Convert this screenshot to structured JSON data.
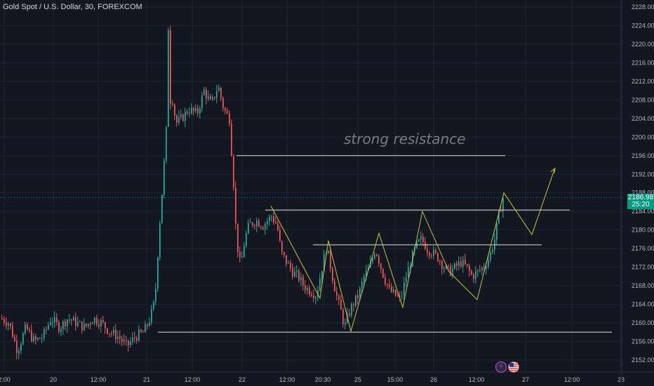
{
  "header": {
    "symbol_title": "Gold Spot / U.S. Dollar, 30, FOREXCOM"
  },
  "last_price": {
    "value": "2186.98",
    "countdown": "25:20"
  },
  "annotation": {
    "text": "strong resistance"
  },
  "events": {
    "flash_icon": "lightning-icon",
    "flag_icon": "us-flag-icon"
  },
  "colors": {
    "background": "#131722",
    "up": "#26a69a",
    "down": "#ef5350",
    "price_tag": "#089981",
    "zigzag": "#c9c43a",
    "level_lines": "#e0e0e0"
  },
  "chart_data": {
    "type": "candlestick",
    "symbol": "Gold Spot / U.S. Dollar",
    "interval": "30",
    "exchange": "FOREXCOM",
    "ylim": [
      2150,
      2229
    ],
    "y_ticks": [
      "2228.00",
      "2224.00",
      "2220.00",
      "2216.00",
      "2212.00",
      "2208.00",
      "2204.00",
      "2200.00",
      "2196.00",
      "2192.00",
      "2188.00",
      "2184.00",
      "2180.00",
      "2176.00",
      "2172.00",
      "2168.00",
      "2164.00",
      "2160.00",
      "2156.00",
      "2152.00"
    ],
    "x_ticks": [
      "2:00",
      "20",
      "12:00",
      "21",
      "12:00",
      "22",
      "12:00",
      "20:30",
      "25",
      "15:00",
      "26",
      "12:00",
      "27",
      "12:00",
      "28"
    ],
    "close_path": [
      [
        0,
        2161
      ],
      [
        12,
        2160
      ],
      [
        24,
        2154
      ],
      [
        36,
        2159
      ],
      [
        48,
        2156
      ],
      [
        60,
        2157
      ],
      [
        72,
        2161
      ],
      [
        84,
        2159
      ],
      [
        96,
        2161
      ],
      [
        108,
        2160
      ],
      [
        120,
        2159
      ],
      [
        132,
        2161
      ],
      [
        144,
        2160
      ],
      [
        156,
        2158
      ],
      [
        168,
        2157
      ],
      [
        180,
        2155
      ],
      [
        192,
        2157
      ],
      [
        204,
        2158
      ],
      [
        213,
        2161
      ],
      [
        220,
        2165
      ],
      [
        226,
        2180
      ],
      [
        232,
        2192
      ],
      [
        238,
        2206
      ],
      [
        244,
        2209
      ],
      [
        250,
        2203
      ],
      [
        258,
        2204
      ],
      [
        268,
        2206
      ],
      [
        280,
        2205
      ],
      [
        290,
        2210
      ],
      [
        300,
        2207
      ],
      [
        310,
        2211
      ],
      [
        318,
        2206
      ],
      [
        326,
        2204
      ],
      [
        332,
        2190
      ],
      [
        336,
        2178
      ],
      [
        342,
        2172
      ],
      [
        348,
        2178
      ],
      [
        354,
        2181
      ],
      [
        364,
        2182
      ],
      [
        374,
        2181
      ],
      [
        386,
        2183
      ],
      [
        394,
        2181
      ],
      [
        400,
        2175
      ],
      [
        408,
        2173
      ],
      [
        416,
        2171
      ],
      [
        424,
        2170
      ],
      [
        432,
        2168
      ],
      [
        440,
        2167
      ],
      [
        450,
        2166
      ],
      [
        458,
        2172
      ],
      [
        464,
        2176
      ],
      [
        468,
        2174
      ],
      [
        474,
        2169
      ],
      [
        480,
        2165
      ],
      [
        486,
        2162
      ],
      [
        490,
        2159
      ],
      [
        496,
        2162
      ],
      [
        502,
        2164
      ],
      [
        510,
        2166
      ],
      [
        518,
        2170
      ],
      [
        526,
        2172
      ],
      [
        534,
        2176
      ],
      [
        540,
        2173
      ],
      [
        546,
        2170
      ],
      [
        554,
        2167
      ],
      [
        562,
        2166
      ],
      [
        570,
        2165
      ],
      [
        578,
        2170
      ],
      [
        586,
        2174
      ],
      [
        594,
        2177
      ],
      [
        600,
        2178
      ],
      [
        608,
        2176
      ],
      [
        616,
        2175
      ],
      [
        624,
        2174
      ],
      [
        632,
        2172
      ],
      [
        640,
        2171
      ],
      [
        648,
        2172
      ],
      [
        656,
        2173
      ],
      [
        664,
        2172
      ],
      [
        672,
        2170
      ],
      [
        680,
        2171
      ],
      [
        688,
        2172
      ],
      [
        696,
        2174
      ],
      [
        704,
        2178
      ],
      [
        710,
        2183
      ],
      [
        716,
        2187
      ]
    ],
    "resistance_lines": [
      {
        "price": 2196.0,
        "x_start_label": "22",
        "x_end_label": "26 (late)"
      },
      {
        "price": 2184.3,
        "x_start_label": "22",
        "x_end_label": "27 (mid)"
      },
      {
        "price": 2176.8,
        "x_start_label": "22 (late)",
        "x_end_label": "26 (late)"
      },
      {
        "price": 2158.0,
        "x_start_label": "21",
        "x_end_label": "28"
      }
    ],
    "projection_zigzag": [
      [
        386,
        2185.2
      ],
      [
        456,
        2165.3
      ],
      [
        468,
        2177.7
      ],
      [
        500,
        2158.2
      ],
      [
        540,
        2179.3
      ],
      [
        574,
        2163.3
      ],
      [
        602,
        2184.0
      ],
      [
        640,
        2171.0
      ],
      [
        680,
        2165.0
      ],
      [
        718,
        2188.0
      ],
      [
        758,
        2179.0
      ],
      [
        790,
        2193.0
      ]
    ],
    "last_price": 2186.98
  }
}
